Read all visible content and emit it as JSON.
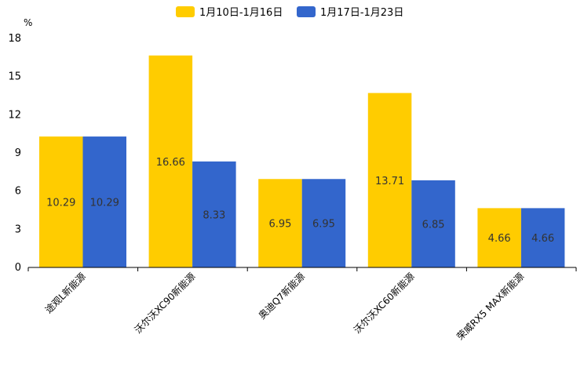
{
  "chart_data": {
    "type": "bar",
    "title": "",
    "xlabel": "",
    "ylabel": "%",
    "ylim": [
      0,
      18
    ],
    "yticks": [
      0,
      3,
      6,
      9,
      12,
      15,
      18
    ],
    "legend_position": "top-center",
    "grid": false,
    "categories": [
      "途观L新能源",
      "沃尔沃XC90新能源",
      "奥迪Q7新能源",
      "沃尔沃XC60新能源",
      "荣威RX5 MAX新能源"
    ],
    "series": [
      {
        "name": "1月10日-1月16日",
        "color": "#FFCC00",
        "values": [
          10.29,
          16.66,
          6.95,
          13.71,
          4.66
        ]
      },
      {
        "name": "1月17日-1月23日",
        "color": "#3366CC",
        "values": [
          10.29,
          8.33,
          6.95,
          6.85,
          4.66
        ]
      }
    ]
  }
}
